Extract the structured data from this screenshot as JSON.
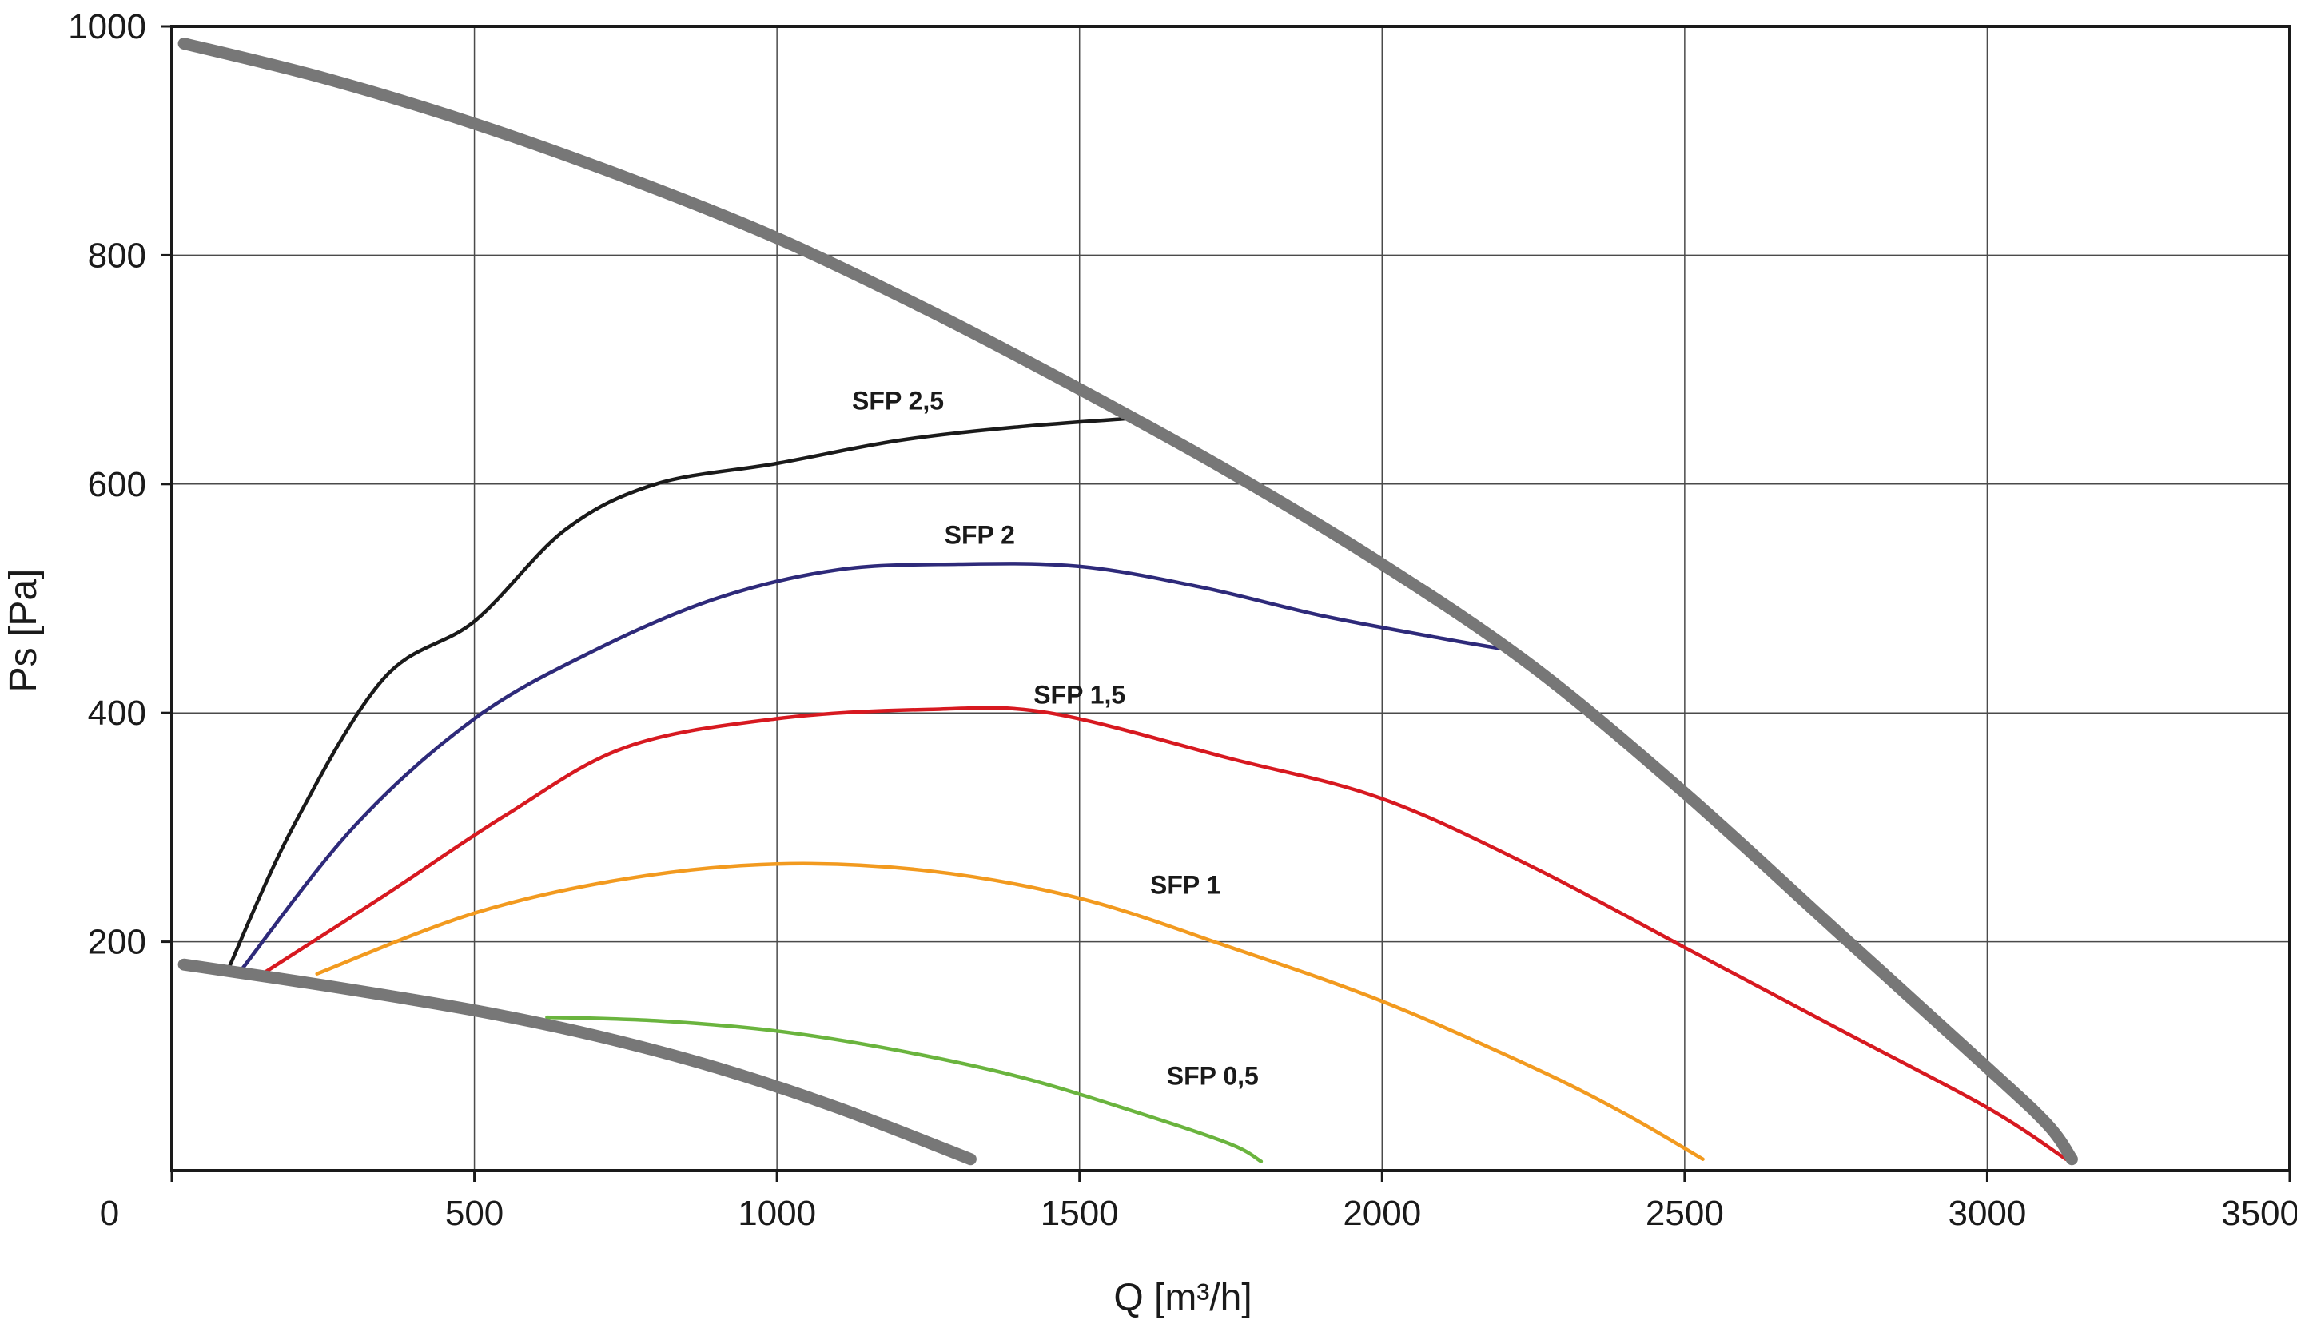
{
  "chart_data": {
    "type": "line",
    "title": "",
    "xlabel": "Q [m³/h]",
    "ylabel": "Ps [Pa]",
    "xlim": [
      0,
      3500
    ],
    "ylim": [
      0,
      1000
    ],
    "grid": true,
    "x_ticks": [
      0,
      500,
      1000,
      1500,
      2000,
      2500,
      3000,
      3500
    ],
    "y_ticks": [
      200,
      400,
      600,
      800,
      1000
    ],
    "boundary_curves": [
      {
        "role": "max",
        "color": "#777777",
        "points": [
          [
            20,
            985
          ],
          [
            250,
            955
          ],
          [
            500,
            915
          ],
          [
            750,
            868
          ],
          [
            1000,
            815
          ],
          [
            1250,
            752
          ],
          [
            1500,
            683
          ],
          [
            1750,
            610
          ],
          [
            2000,
            530
          ],
          [
            2250,
            440
          ],
          [
            2500,
            330
          ],
          [
            2750,
            210
          ],
          [
            3000,
            90
          ],
          [
            3100,
            40
          ],
          [
            3140,
            10
          ]
        ]
      },
      {
        "role": "min",
        "color": "#777777",
        "points": [
          [
            20,
            180
          ],
          [
            250,
            162
          ],
          [
            500,
            140
          ],
          [
            700,
            118
          ],
          [
            900,
            90
          ],
          [
            1100,
            55
          ],
          [
            1320,
            10
          ]
        ]
      }
    ],
    "series": [
      {
        "name": "SFP 2,5",
        "color": "#1a1a1a",
        "label_at": [
          1200,
          665
        ],
        "points": [
          [
            90,
            172
          ],
          [
            200,
            300
          ],
          [
            350,
            430
          ],
          [
            500,
            480
          ],
          [
            650,
            560
          ],
          [
            800,
            600
          ],
          [
            1000,
            618
          ],
          [
            1200,
            638
          ],
          [
            1400,
            650
          ],
          [
            1600,
            658
          ]
        ]
      },
      {
        "name": "SFP 2",
        "color": "#2e2a7a",
        "label_at": [
          1335,
          548
        ],
        "points": [
          [
            110,
            172
          ],
          [
            300,
            300
          ],
          [
            500,
            395
          ],
          [
            700,
            455
          ],
          [
            900,
            500
          ],
          [
            1100,
            525
          ],
          [
            1300,
            530
          ],
          [
            1500,
            528
          ],
          [
            1700,
            510
          ],
          [
            1900,
            485
          ],
          [
            2100,
            465
          ],
          [
            2210,
            455
          ]
        ]
      },
      {
        "name": "SFP 1,5",
        "color": "#d71920",
        "label_at": [
          1500,
          408
        ],
        "points": [
          [
            150,
            172
          ],
          [
            350,
            240
          ],
          [
            550,
            310
          ],
          [
            750,
            370
          ],
          [
            1000,
            395
          ],
          [
            1250,
            403
          ],
          [
            1450,
            400
          ],
          [
            1750,
            360
          ],
          [
            2000,
            325
          ],
          [
            2250,
            265
          ],
          [
            2500,
            195
          ],
          [
            2750,
            125
          ],
          [
            3000,
            55
          ],
          [
            3130,
            10
          ]
        ]
      },
      {
        "name": "SFP 1",
        "color": "#f29a1f",
        "label_at": [
          1675,
          242
        ],
        "points": [
          [
            240,
            172
          ],
          [
            500,
            225
          ],
          [
            750,
            255
          ],
          [
            1000,
            268
          ],
          [
            1250,
            262
          ],
          [
            1500,
            238
          ],
          [
            1750,
            195
          ],
          [
            2000,
            148
          ],
          [
            2250,
            90
          ],
          [
            2400,
            50
          ],
          [
            2530,
            10
          ]
        ]
      },
      {
        "name": "SFP 0,5",
        "color": "#6ab43e",
        "label_at": [
          1720,
          75
        ],
        "points": [
          [
            620,
            134
          ],
          [
            800,
            131
          ],
          [
            1000,
            122
          ],
          [
            1200,
            105
          ],
          [
            1400,
            82
          ],
          [
            1600,
            50
          ],
          [
            1750,
            23
          ],
          [
            1800,
            8
          ]
        ]
      }
    ]
  }
}
